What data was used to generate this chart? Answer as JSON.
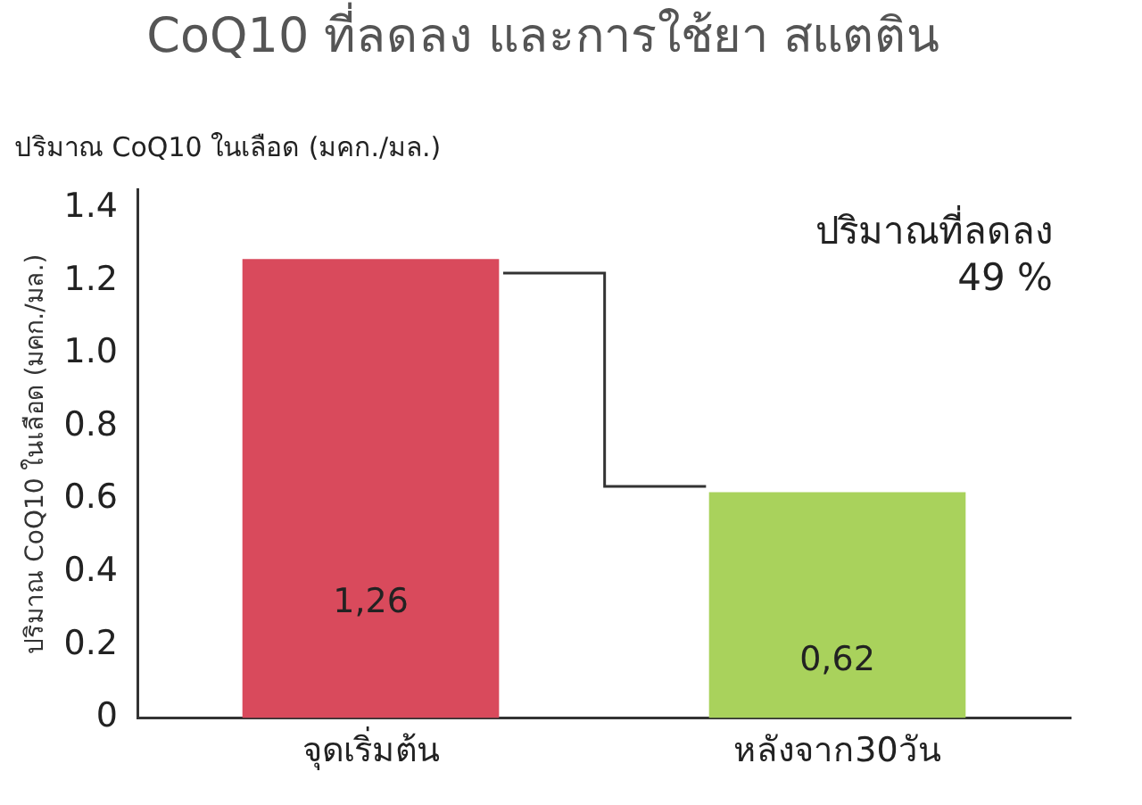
{
  "chart_data": {
    "type": "bar",
    "title": "CoQ10 ที่ลดลง และการใช้ยา สแตติน",
    "subtitle": "ปริมาณ CoQ10 ในเลือด (มคก./มล.)",
    "ylabel": "ปริมาณ CoQ10 ในเลือด (มคก./มล.)",
    "categories": [
      "จุดเริ่มต้น",
      "หลังจาก30วัน"
    ],
    "values": [
      1.26,
      0.62
    ],
    "value_labels": [
      "1,26",
      "0,62"
    ],
    "colors": [
      "#d94a5c",
      "#a9d25c"
    ],
    "ylim": [
      0,
      1.45
    ],
    "yticks": [
      0,
      0.2,
      0.4,
      0.6,
      0.8,
      {
        "value": 1,
        "label": "1.0"
      },
      1.2,
      1.4
    ],
    "grid": false,
    "annotations": [
      "ปริมาณที่ลดลง\n49 %"
    ]
  }
}
